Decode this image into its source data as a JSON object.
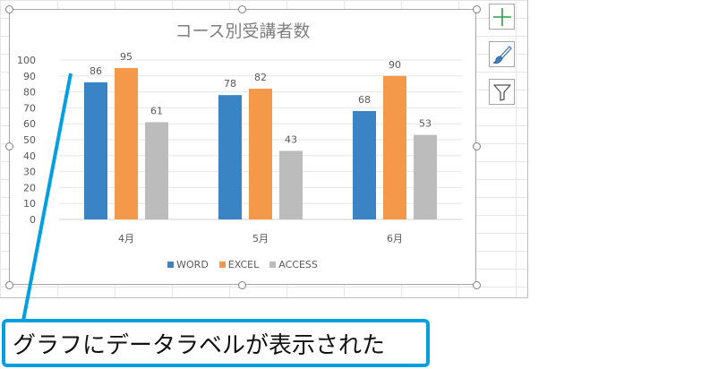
{
  "chart_data": {
    "type": "bar",
    "title": "コース別受講者数",
    "categories": [
      "4月",
      "5月",
      "6月"
    ],
    "series": [
      {
        "name": "WORD",
        "values": [
          86,
          78,
          68
        ],
        "color": "#3a84c5"
      },
      {
        "name": "EXCEL",
        "values": [
          95,
          82,
          90
        ],
        "color": "#f4994a"
      },
      {
        "name": "ACCESS",
        "values": [
          61,
          43,
          53
        ],
        "color": "#bcbcbc"
      }
    ],
    "ylim": [
      0,
      100
    ],
    "yticks": [
      0,
      10,
      20,
      30,
      40,
      50,
      60,
      70,
      80,
      90,
      100
    ],
    "data_labels": true,
    "grid": true,
    "legend": "bottom",
    "xlabel": "",
    "ylabel": ""
  },
  "tools": {
    "elements_icon": "plus-icon",
    "styles_icon": "brush-icon",
    "filter_icon": "funnel-icon"
  },
  "callout": {
    "text": "グラフにデータラベルが表示された",
    "color": "#00a0e0"
  }
}
